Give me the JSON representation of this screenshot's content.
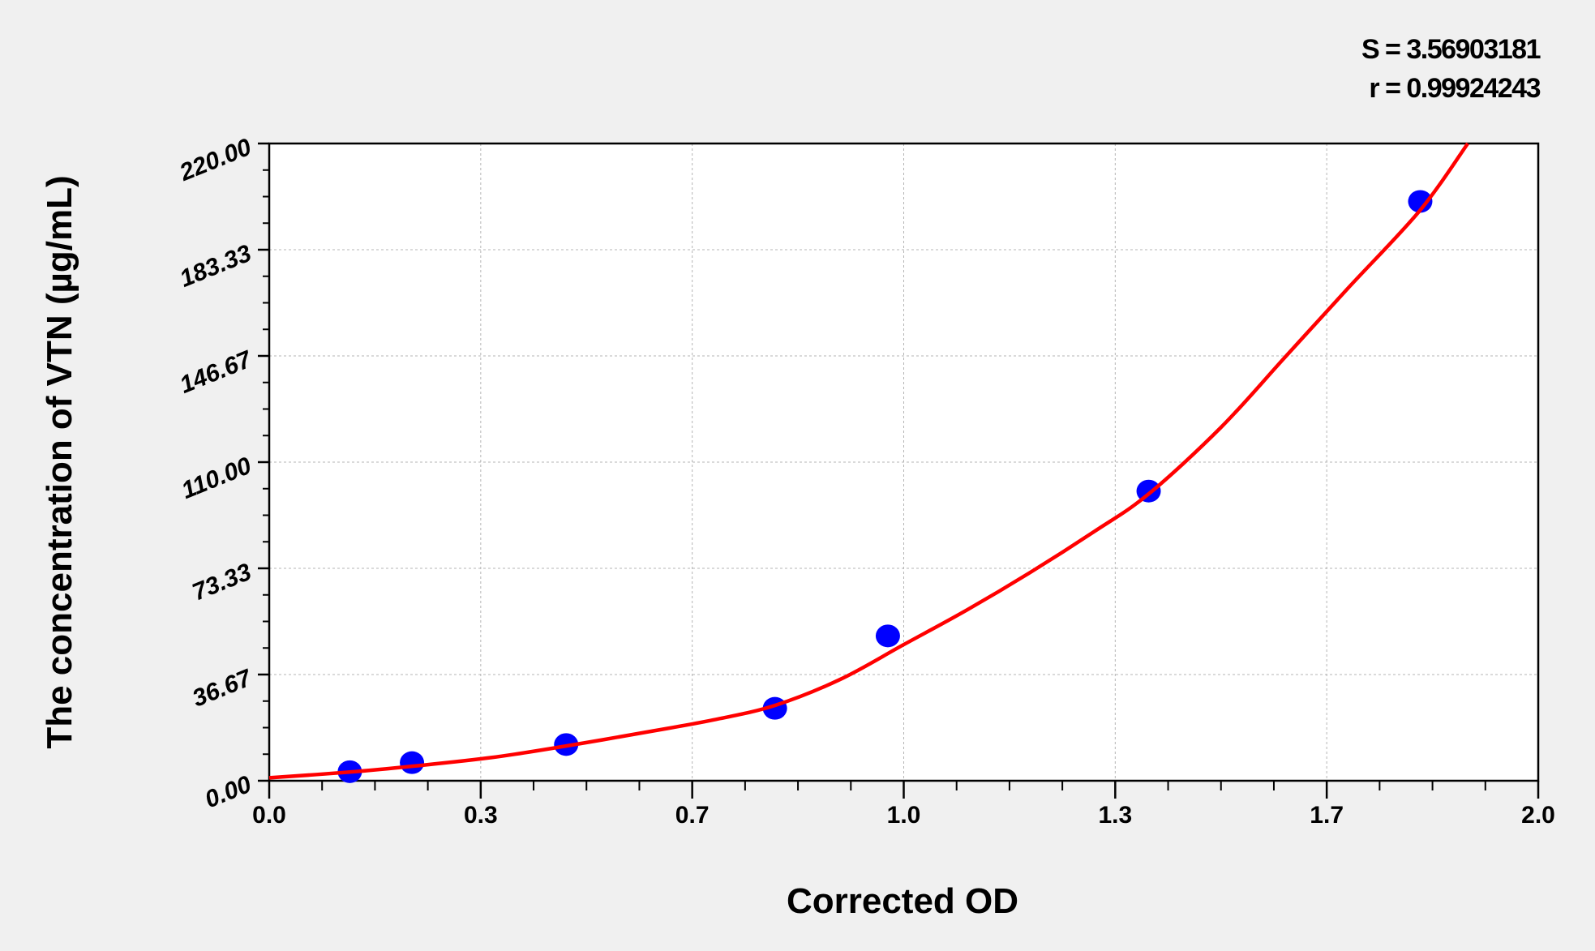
{
  "chart_data": {
    "type": "scatter",
    "xlabel": "Corrected OD",
    "ylabel": "The concentration of VTN (µg/mL)",
    "xlim": [
      0,
      2.0
    ],
    "ylim": [
      0,
      220
    ],
    "x_ticks": [
      "0.0",
      "0.3",
      "0.7",
      "1.0",
      "1.3",
      "1.7",
      "2.0"
    ],
    "y_ticks": [
      "0.00",
      "36.67",
      "73.33",
      "110.00",
      "146.67",
      "183.33",
      "220.00"
    ],
    "grid": true,
    "annotations": {
      "S": "S = 3.56903181",
      "r": "r = 0.99924243"
    },
    "colors": {
      "points": "#0000ff",
      "curve": "#ff0000",
      "plot_bg": "#ffffff",
      "page_bg": "#f0f0f0"
    },
    "series": [
      {
        "type": "scatter",
        "x": [
          0.127,
          0.225,
          0.468,
          0.797,
          0.975,
          1.386,
          1.814
        ],
        "y": [
          3.13,
          6.25,
          12.5,
          25,
          50,
          100,
          200
        ]
      },
      {
        "type": "line",
        "x": [
          0,
          0.127,
          0.225,
          0.35,
          0.468,
          0.6,
          0.7,
          0.797,
          0.9,
          1.0,
          1.1,
          1.2,
          1.3,
          1.386,
          1.5,
          1.6,
          1.7,
          1.814,
          1.889
        ],
        "y": [
          1,
          3,
          5,
          8,
          12,
          17,
          21,
          26,
          35,
          47,
          59,
          72,
          86,
          99,
          122,
          146,
          170,
          197,
          220
        ]
      }
    ]
  }
}
